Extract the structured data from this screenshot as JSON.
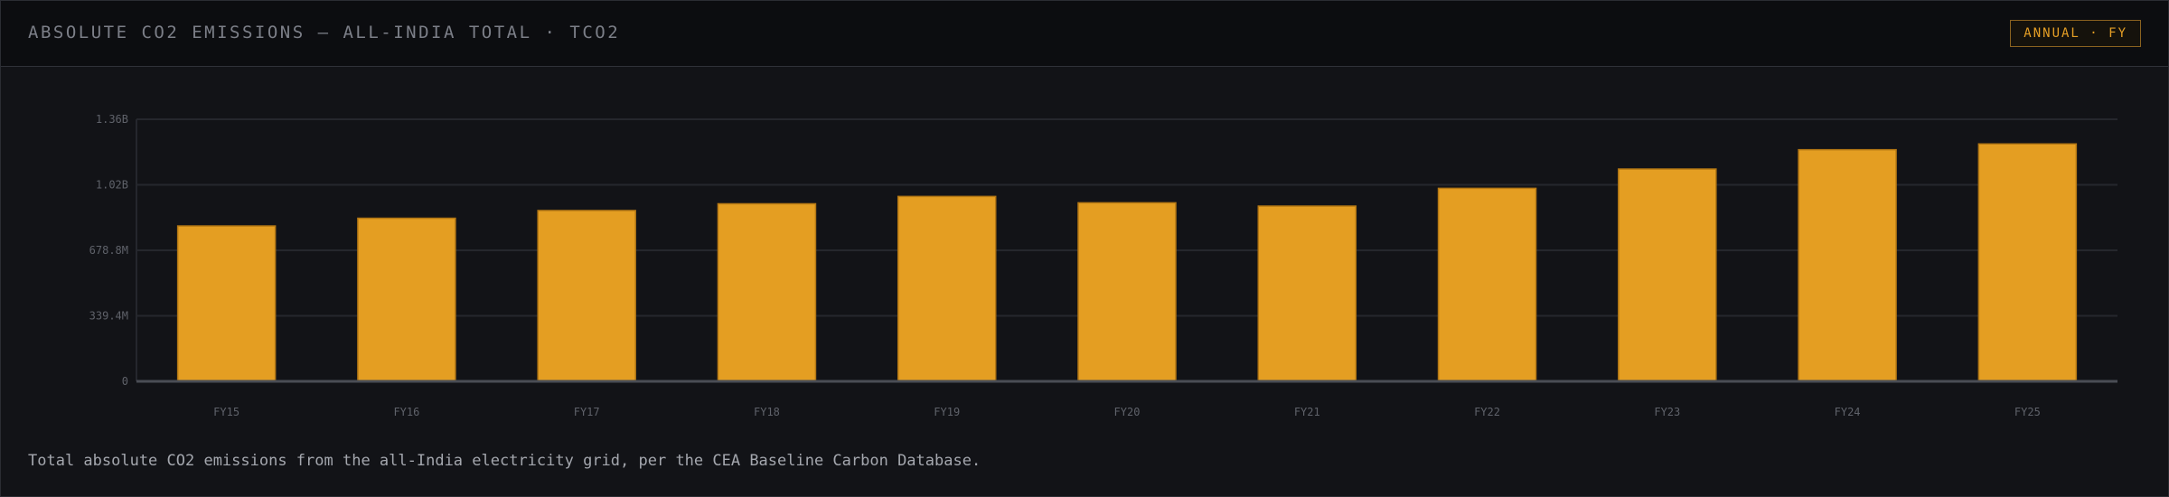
{
  "header": {
    "title": "ABSOLUTE CO2 EMISSIONS — ALL-INDIA TOTAL · TCO2",
    "badge": "ANNUAL · FY"
  },
  "caption": "Total absolute CO2 emissions from the all-India electricity grid, per the CEA Baseline Carbon Database.",
  "colors": {
    "bar": "#e49e22",
    "bar_border": "#b37714",
    "grid": "#25272d",
    "axis": "#4a4d55",
    "tick_text": "#5f626a"
  },
  "chart_data": {
    "type": "bar",
    "title": "ABSOLUTE CO2 EMISSIONS — ALL-INDIA TOTAL · TCO2",
    "xlabel": "",
    "ylabel": "",
    "categories": [
      "FY15",
      "FY16",
      "FY17",
      "FY18",
      "FY19",
      "FY20",
      "FY21",
      "FY22",
      "FY23",
      "FY24",
      "FY25"
    ],
    "values": [
      805,
      845,
      885,
      920,
      958,
      925,
      908,
      1000,
      1100,
      1200,
      1230
    ],
    "value_unit": "M tCO2",
    "ylim": [
      0,
      1357.6
    ],
    "yticks": [
      0,
      339.4,
      678.8,
      1018.2,
      1357.6
    ],
    "ytick_labels": [
      "0",
      "339.4M",
      "678.8M",
      "1.02B",
      "1.36B"
    ],
    "grid": true,
    "legend": "none"
  }
}
